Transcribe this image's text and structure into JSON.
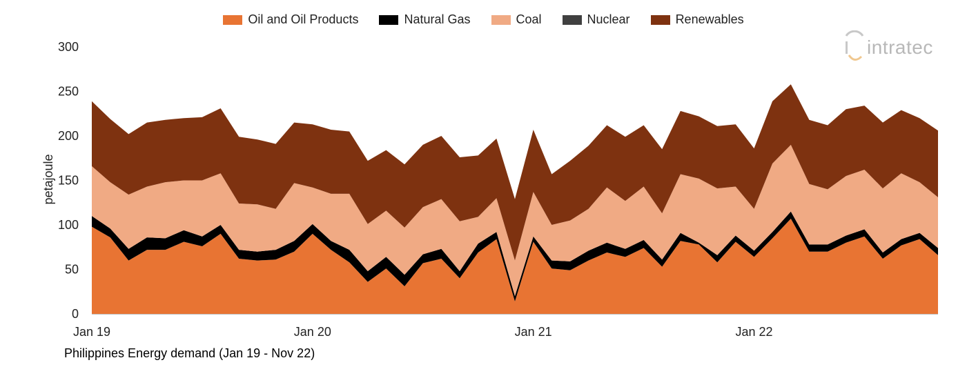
{
  "chart_data": {
    "type": "area",
    "stacked": true,
    "title": "Philippines Energy demand (Jan 19 - Nov 22)",
    "xlabel": "",
    "ylabel": "petajoule",
    "ylim": [
      0,
      300
    ],
    "yticks": [
      0,
      50,
      100,
      150,
      200,
      250,
      300
    ],
    "xtick_labels": [
      "Jan 19",
      "Jan 20",
      "Jan 21",
      "Jan 22"
    ],
    "months": 47,
    "series": [
      {
        "name": "Oil and Oil Products",
        "color": "#E87433",
        "values": [
          98,
          86,
          60,
          72,
          72,
          81,
          76,
          90,
          62,
          60,
          61,
          70,
          90,
          72,
          58,
          36,
          51,
          31,
          57,
          62,
          40,
          69,
          84,
          14,
          81,
          51,
          49,
          60,
          69,
          64,
          74,
          53,
          82,
          78,
          58,
          81,
          64,
          85,
          107,
          70,
          70,
          80,
          87,
          62,
          77,
          84,
          66
        ]
      },
      {
        "name": "Natural Gas",
        "color": "#000000",
        "values": [
          12,
          10,
          13,
          14,
          13,
          13,
          11,
          10,
          10,
          10,
          11,
          12,
          11,
          10,
          14,
          12,
          13,
          13,
          10,
          11,
          8,
          10,
          8,
          6,
          6,
          9,
          10,
          11,
          11,
          9,
          9,
          8,
          9,
          2,
          8,
          7,
          7,
          7,
          8,
          8,
          8,
          8,
          8,
          7,
          7,
          7,
          8
        ]
      },
      {
        "name": "Coal",
        "color": "#F0AA84",
        "values": [
          56,
          52,
          61,
          57,
          63,
          56,
          63,
          58,
          52,
          53,
          46,
          65,
          41,
          53,
          63,
          53,
          52,
          53,
          53,
          56,
          56,
          30,
          38,
          40,
          50,
          40,
          46,
          47,
          62,
          54,
          60,
          52,
          66,
          72,
          75,
          55,
          47,
          77,
          75,
          68,
          62,
          67,
          67,
          72,
          74,
          57,
          57
        ]
      },
      {
        "name": "Nuclear",
        "color": "#404040",
        "values": [
          0,
          0,
          0,
          0,
          0,
          0,
          0,
          0,
          0,
          0,
          0,
          0,
          0,
          0,
          0,
          0,
          0,
          0,
          0,
          0,
          0,
          0,
          0,
          0,
          0,
          0,
          0,
          0,
          0,
          0,
          0,
          0,
          0,
          0,
          0,
          0,
          0,
          0,
          0,
          0,
          0,
          0,
          0,
          0,
          0,
          0,
          0
        ]
      },
      {
        "name": "Renewables",
        "color": "#7E3210",
        "values": [
          73,
          71,
          68,
          72,
          70,
          70,
          71,
          73,
          75,
          73,
          73,
          68,
          71,
          72,
          70,
          71,
          68,
          71,
          70,
          71,
          72,
          69,
          67,
          69,
          70,
          57,
          67,
          71,
          70,
          72,
          69,
          72,
          71,
          70,
          70,
          70,
          68,
          70,
          68,
          72,
          72,
          75,
          72,
          74,
          71,
          72,
          75
        ]
      }
    ]
  },
  "logo": {
    "text": "intratec"
  },
  "caption": "Philippines Energy demand (Jan 19 - Nov 22)"
}
